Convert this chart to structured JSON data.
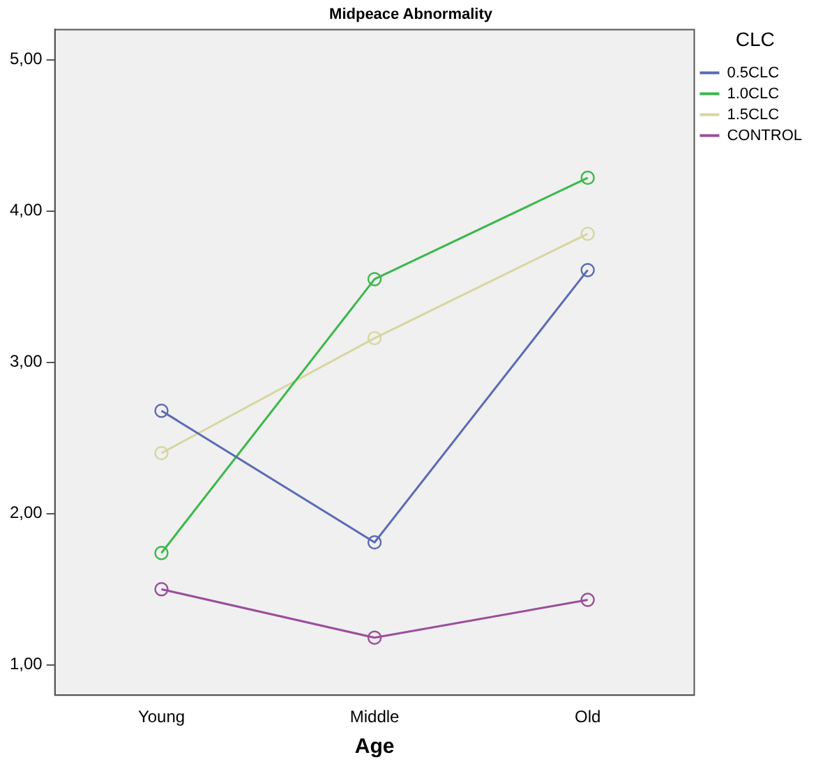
{
  "chart_data": {
    "type": "line",
    "title": "Midpeace Abnormality",
    "xlabel": "Age",
    "legend_title": "CLC",
    "categories": [
      "Young",
      "Middle",
      "Old"
    ],
    "series": [
      {
        "name": "0.5CLC",
        "color": "#5a6bb5",
        "values": [
          2.68,
          1.81,
          3.61
        ]
      },
      {
        "name": "1.0CLC",
        "color": "#3cb84a",
        "values": [
          1.74,
          3.55,
          4.22
        ]
      },
      {
        "name": "1.5CLC",
        "color": "#d6d6a0",
        "values": [
          2.4,
          3.16,
          3.85
        ]
      },
      {
        "name": "CONTROL",
        "color": "#9a4f9a",
        "values": [
          1.5,
          1.18,
          1.43
        ]
      }
    ],
    "ylim": [
      0.8,
      5.2
    ],
    "yticks": [
      {
        "value": 1,
        "label": "1,00"
      },
      {
        "value": 2,
        "label": "2,00"
      },
      {
        "value": 3,
        "label": "3,00"
      },
      {
        "value": 4,
        "label": "4,00"
      },
      {
        "value": 5,
        "label": "5,00"
      }
    ],
    "grid": false,
    "legend": "right",
    "marker": "circle",
    "line_style": "solid"
  }
}
